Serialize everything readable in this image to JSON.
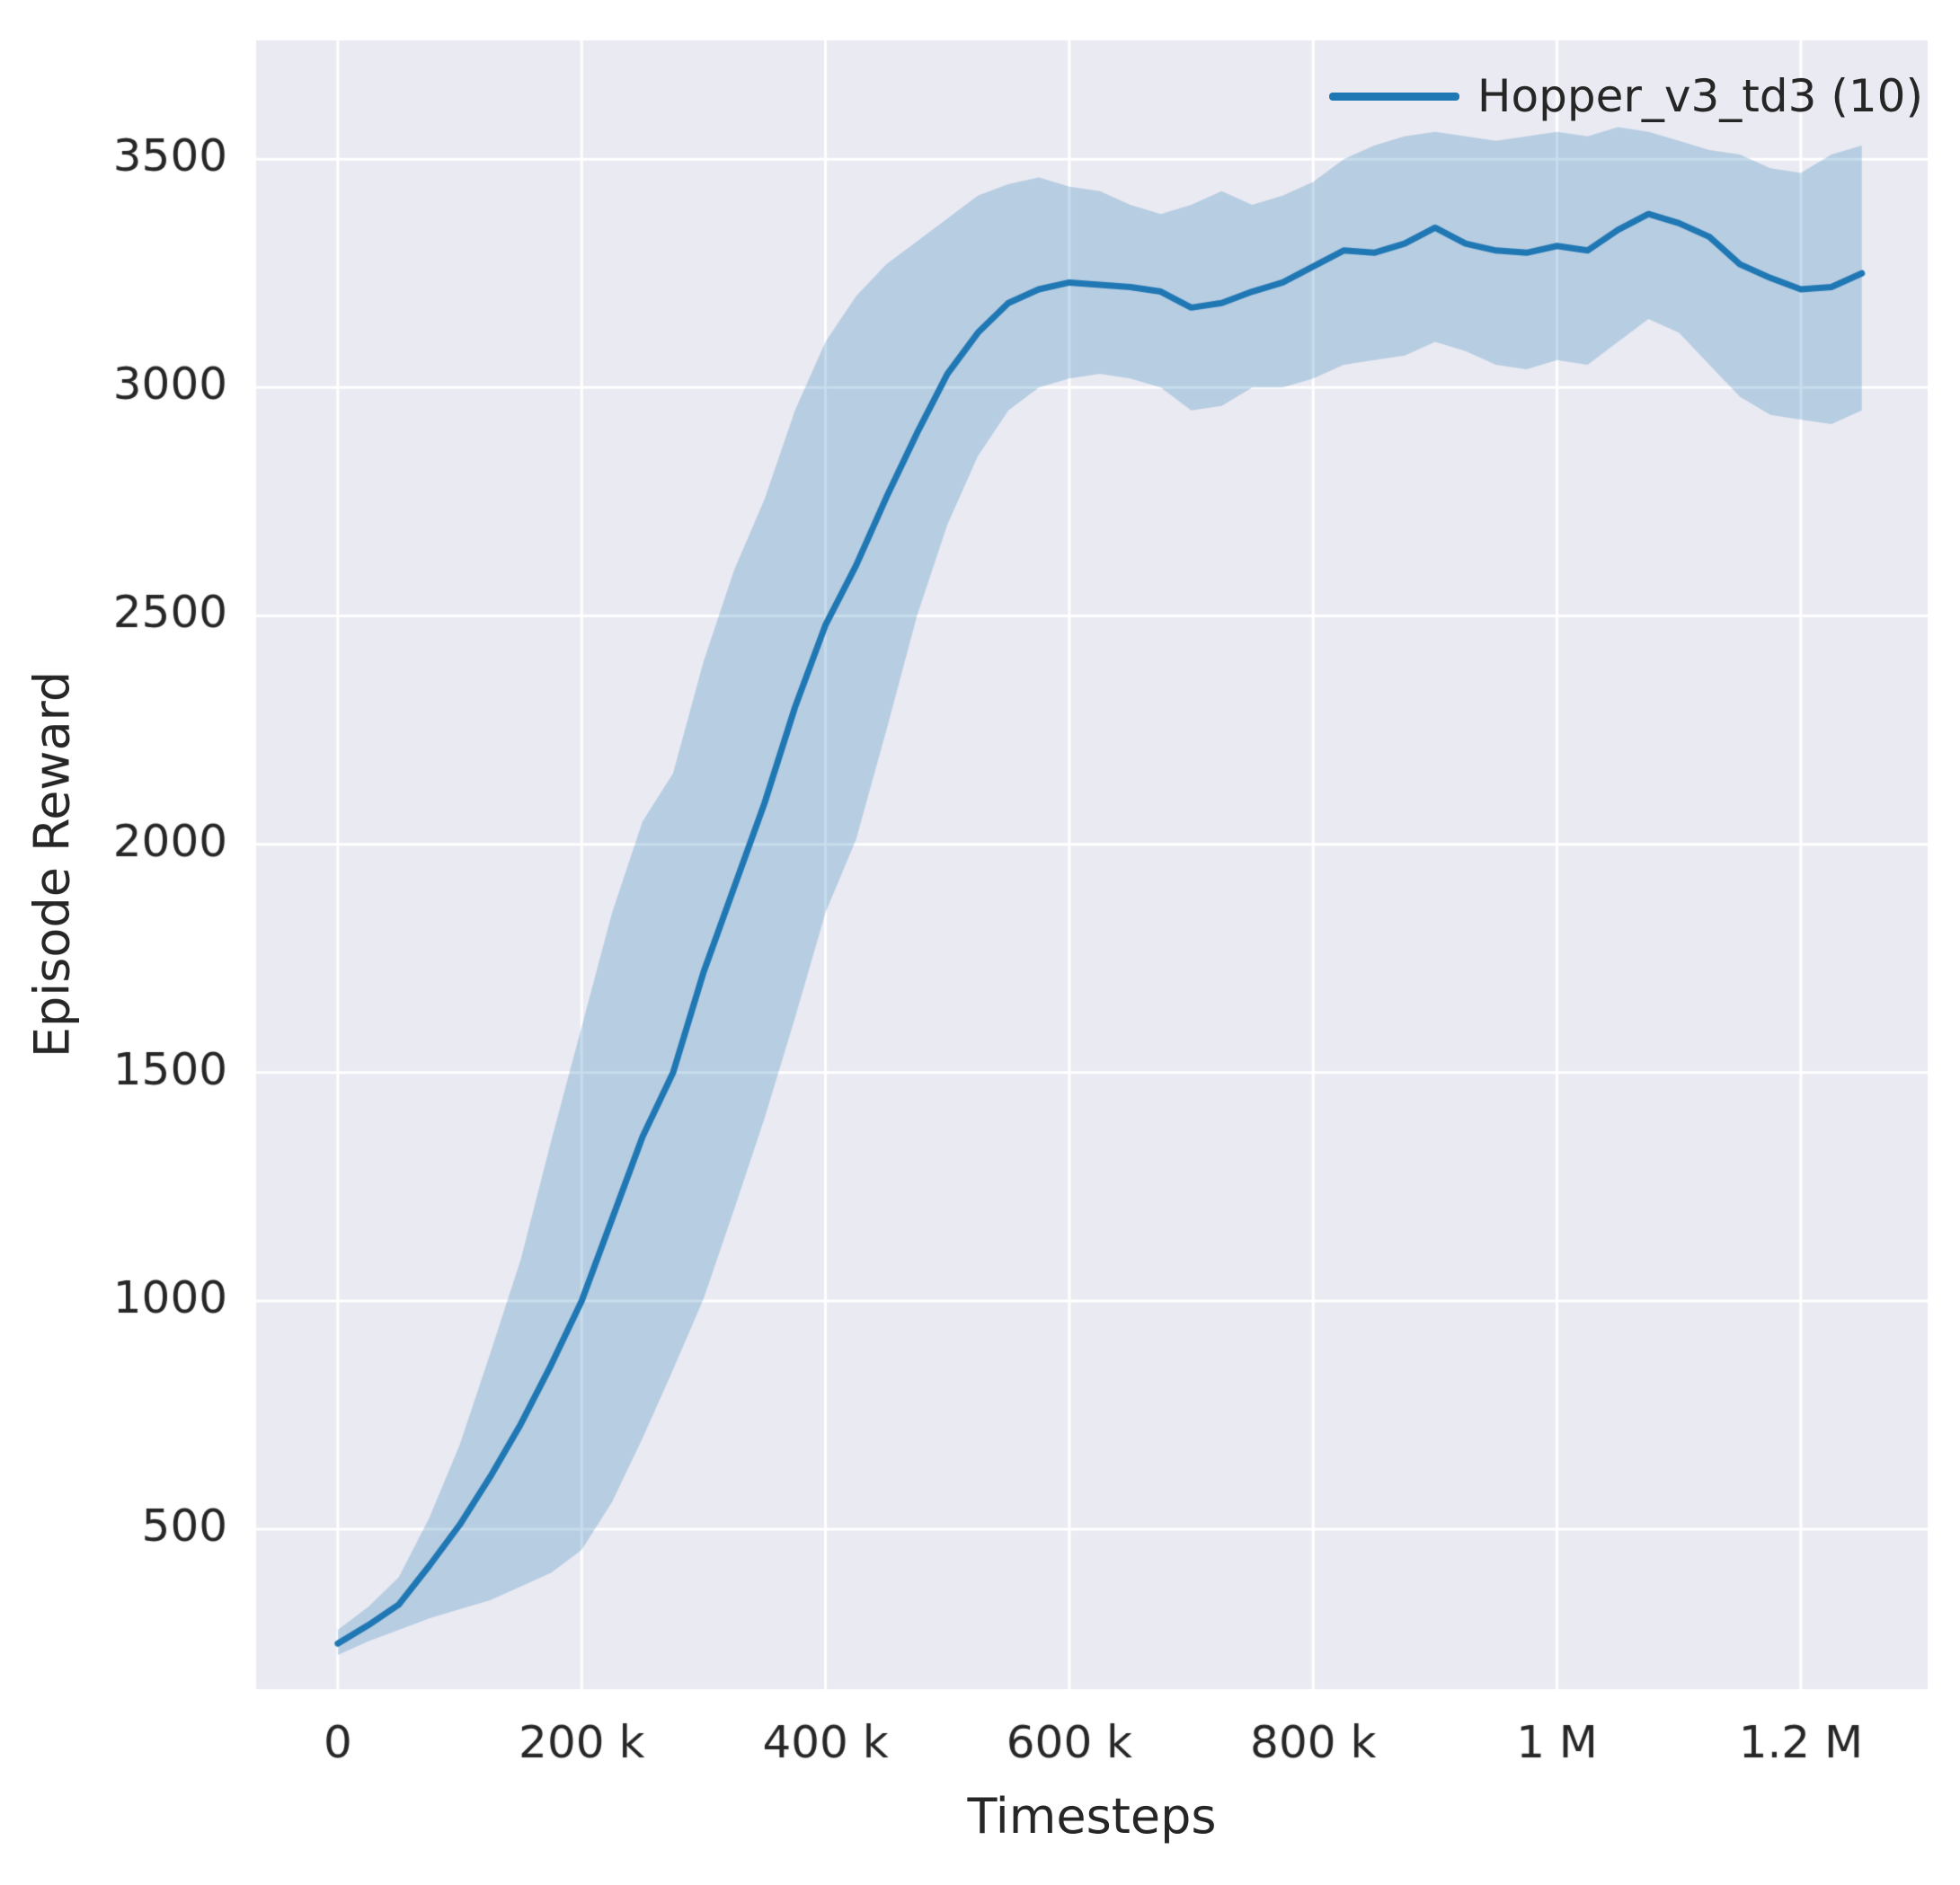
{
  "chart_data": {
    "type": "line",
    "title": "",
    "xlabel": "Timesteps",
    "ylabel": "Episode Reward",
    "xlim": [
      -67000,
      1304000
    ],
    "ylim": [
      150,
      3760
    ],
    "grid": true,
    "legend_position": "upper right",
    "colors": {
      "plot_background": "#eaeaf2",
      "grid": "#ffffff",
      "text": "#262626",
      "line": "#1f77b4",
      "band": "rgba(31,119,180,0.25)"
    },
    "xticks": {
      "values": [
        0,
        200000,
        400000,
        600000,
        800000,
        1000000,
        1200000
      ],
      "labels": [
        "0",
        "200 k",
        "400 k",
        "600 k",
        "800 k",
        "1 M",
        "1.2 M"
      ]
    },
    "yticks": {
      "values": [
        500,
        1000,
        1500,
        2000,
        2500,
        3000,
        3500
      ],
      "labels": [
        "500",
        "1000",
        "1500",
        "2000",
        "2500",
        "3000",
        "3500"
      ]
    },
    "series": [
      {
        "name": "Hopper_v3_td3 (10)",
        "color": "#1f77b4",
        "x": [
          0,
          25000,
          50000,
          75000,
          100000,
          125000,
          150000,
          175000,
          200000,
          225000,
          250000,
          275000,
          300000,
          325000,
          350000,
          375000,
          400000,
          425000,
          450000,
          475000,
          500000,
          525000,
          550000,
          575000,
          600000,
          625000,
          650000,
          675000,
          700000,
          725000,
          750000,
          775000,
          800000,
          825000,
          850000,
          875000,
          900000,
          925000,
          950000,
          975000,
          1000000,
          1025000,
          1050000,
          1075000,
          1100000,
          1125000,
          1150000,
          1175000,
          1200000,
          1225000,
          1250000
        ],
        "mean": [
          250,
          290,
          335,
          420,
          510,
          615,
          730,
          860,
          1000,
          1180,
          1360,
          1500,
          1720,
          1905,
          2090,
          2300,
          2480,
          2610,
          2760,
          2900,
          3030,
          3120,
          3185,
          3215,
          3230,
          3225,
          3220,
          3210,
          3175,
          3185,
          3210,
          3230,
          3265,
          3300,
          3295,
          3315,
          3350,
          3315,
          3300,
          3295,
          3310,
          3300,
          3345,
          3380,
          3360,
          3330,
          3270,
          3240,
          3215,
          3220,
          3250
        ],
        "lower": [
          225,
          255,
          280,
          305,
          325,
          345,
          375,
          405,
          455,
          560,
          700,
          850,
          1005,
          1200,
          1400,
          1620,
          1850,
          2010,
          2250,
          2500,
          2700,
          2850,
          2950,
          3000,
          3020,
          3030,
          3020,
          3000,
          2950,
          2960,
          3000,
          3000,
          3020,
          3050,
          3060,
          3070,
          3100,
          3080,
          3050,
          3040,
          3060,
          3050,
          3100,
          3150,
          3120,
          3050,
          2980,
          2940,
          2930,
          2920,
          2950
        ],
        "upper": [
          280,
          330,
          395,
          525,
          685,
          885,
          1090,
          1350,
          1600,
          1850,
          2050,
          2155,
          2400,
          2600,
          2755,
          2950,
          3100,
          3200,
          3270,
          3320,
          3370,
          3420,
          3445,
          3460,
          3440,
          3430,
          3400,
          3380,
          3400,
          3430,
          3400,
          3420,
          3450,
          3500,
          3530,
          3550,
          3560,
          3550,
          3540,
          3550,
          3560,
          3550,
          3570,
          3560,
          3540,
          3520,
          3510,
          3480,
          3470,
          3510,
          3530
        ]
      }
    ]
  }
}
